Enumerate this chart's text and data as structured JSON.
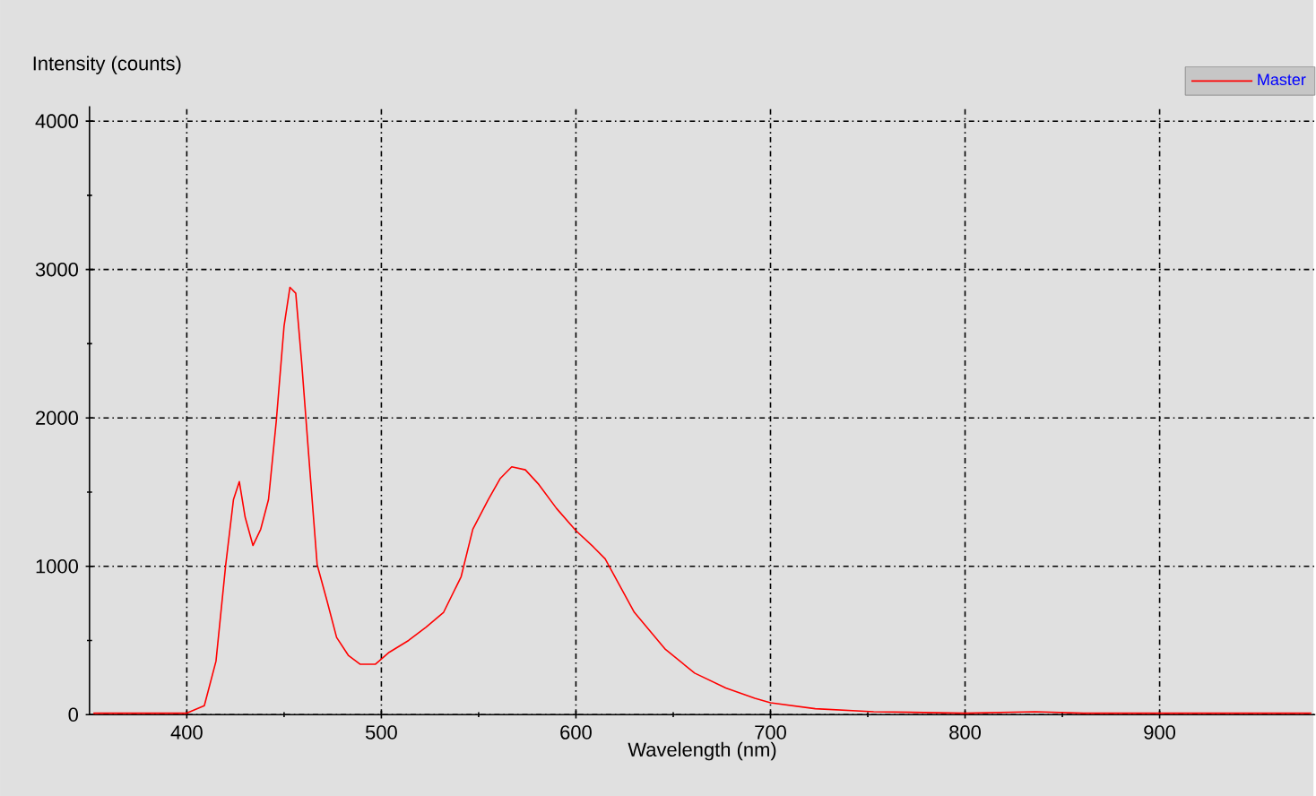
{
  "chart_data": {
    "type": "line",
    "xlabel": "Wavelength (nm)",
    "ylabel": "Intensity (counts)",
    "xlim": [
      350,
      980
    ],
    "ylim": [
      0,
      4100
    ],
    "xticks": [
      400,
      500,
      600,
      700,
      800,
      900
    ],
    "yticks": [
      0,
      1000,
      2000,
      3000,
      4000
    ],
    "grid": true,
    "legend": "top right",
    "marker": "none",
    "line_style": "solid",
    "series": [
      {
        "name": "Master",
        "color": "#ff0000",
        "x": [
          352,
          380,
          400,
          409,
          415,
          420,
          424,
          427,
          430,
          434,
          438,
          442,
          446,
          450,
          453,
          456,
          459,
          463,
          467,
          472,
          477,
          483,
          489,
          497,
          504,
          514,
          523,
          532,
          541,
          547,
          555,
          561,
          567,
          574,
          581,
          590,
          600,
          609,
          615,
          630,
          646,
          661,
          677,
          692,
          700,
          723,
          753,
          800,
          836,
          861,
          923,
          978
        ],
        "values": [
          10,
          10,
          10,
          60,
          360,
          1010,
          1450,
          1570,
          1330,
          1140,
          1250,
          1450,
          1980,
          2620,
          2880,
          2840,
          2380,
          1690,
          1010,
          770,
          520,
          400,
          340,
          340,
          420,
          500,
          590,
          690,
          930,
          1250,
          1450,
          1590,
          1670,
          1650,
          1550,
          1390,
          1240,
          1130,
          1050,
          690,
          440,
          280,
          180,
          110,
          80,
          40,
          20,
          10,
          20,
          10,
          10,
          10
        ]
      }
    ]
  }
}
